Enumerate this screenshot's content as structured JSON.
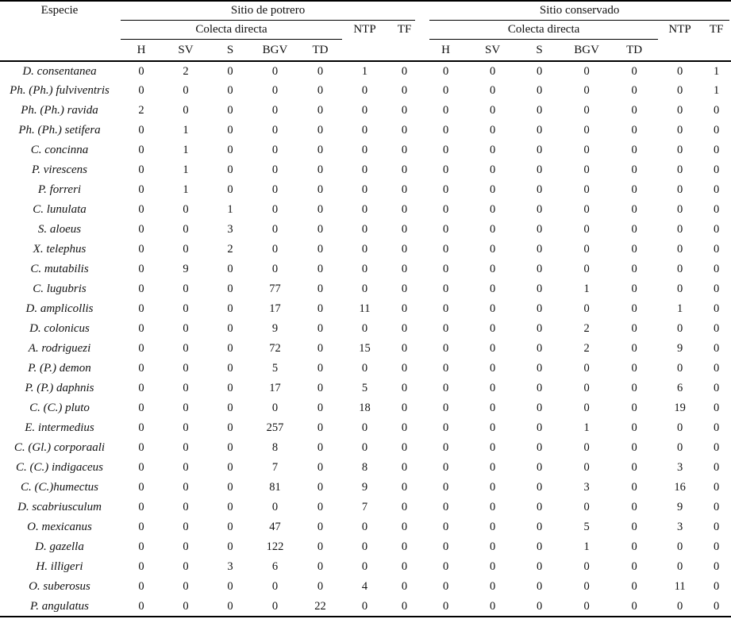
{
  "table": {
    "especie_header": "Especie",
    "groups": [
      {
        "label": "Sitio de potrero"
      },
      {
        "label": "Sitio conservado"
      }
    ],
    "subgroup_label": "Colecta directa",
    "method_columns": [
      "H",
      "SV",
      "S",
      "BGV",
      "TD"
    ],
    "extra_columns": [
      "NTP",
      "TF"
    ],
    "rows": [
      {
        "species": "D. consentanea",
        "values": [
          0,
          2,
          0,
          0,
          0,
          1,
          0,
          0,
          0,
          0,
          0,
          0,
          0,
          1
        ]
      },
      {
        "species": "Ph. (Ph.) fulviventris",
        "values": [
          0,
          0,
          0,
          0,
          0,
          0,
          0,
          0,
          0,
          0,
          0,
          0,
          0,
          1
        ]
      },
      {
        "species": "Ph. (Ph.) ravida",
        "values": [
          2,
          0,
          0,
          0,
          0,
          0,
          0,
          0,
          0,
          0,
          0,
          0,
          0,
          0
        ]
      },
      {
        "species": "Ph. (Ph.) setifera",
        "values": [
          0,
          1,
          0,
          0,
          0,
          0,
          0,
          0,
          0,
          0,
          0,
          0,
          0,
          0
        ]
      },
      {
        "species": "C. concinna",
        "values": [
          0,
          1,
          0,
          0,
          0,
          0,
          0,
          0,
          0,
          0,
          0,
          0,
          0,
          0
        ]
      },
      {
        "species": "P. virescens",
        "values": [
          0,
          1,
          0,
          0,
          0,
          0,
          0,
          0,
          0,
          0,
          0,
          0,
          0,
          0
        ]
      },
      {
        "species": "P. forreri",
        "values": [
          0,
          1,
          0,
          0,
          0,
          0,
          0,
          0,
          0,
          0,
          0,
          0,
          0,
          0
        ]
      },
      {
        "species": "C. lunulata",
        "values": [
          0,
          0,
          1,
          0,
          0,
          0,
          0,
          0,
          0,
          0,
          0,
          0,
          0,
          0
        ]
      },
      {
        "species": "S. aloeus",
        "values": [
          0,
          0,
          3,
          0,
          0,
          0,
          0,
          0,
          0,
          0,
          0,
          0,
          0,
          0
        ]
      },
      {
        "species": "X. telephus",
        "values": [
          0,
          0,
          2,
          0,
          0,
          0,
          0,
          0,
          0,
          0,
          0,
          0,
          0,
          0
        ]
      },
      {
        "species": "C. mutabilis",
        "values": [
          0,
          9,
          0,
          0,
          0,
          0,
          0,
          0,
          0,
          0,
          0,
          0,
          0,
          0
        ]
      },
      {
        "species": "C. lugubris",
        "values": [
          0,
          0,
          0,
          77,
          0,
          0,
          0,
          0,
          0,
          0,
          1,
          0,
          0,
          0
        ]
      },
      {
        "species": "D. amplicollis",
        "values": [
          0,
          0,
          0,
          17,
          0,
          11,
          0,
          0,
          0,
          0,
          0,
          0,
          1,
          0
        ]
      },
      {
        "species": "D. colonicus",
        "values": [
          0,
          0,
          0,
          9,
          0,
          0,
          0,
          0,
          0,
          0,
          2,
          0,
          0,
          0
        ]
      },
      {
        "species": "A. rodriguezi",
        "values": [
          0,
          0,
          0,
          72,
          0,
          15,
          0,
          0,
          0,
          0,
          2,
          0,
          9,
          0
        ]
      },
      {
        "species": "P. (P.) demon",
        "values": [
          0,
          0,
          0,
          5,
          0,
          0,
          0,
          0,
          0,
          0,
          0,
          0,
          0,
          0
        ]
      },
      {
        "species": "P. (P.) daphnis",
        "values": [
          0,
          0,
          0,
          17,
          0,
          5,
          0,
          0,
          0,
          0,
          0,
          0,
          6,
          0
        ]
      },
      {
        "species": "C. (C.) pluto",
        "values": [
          0,
          0,
          0,
          0,
          0,
          18,
          0,
          0,
          0,
          0,
          0,
          0,
          19,
          0
        ]
      },
      {
        "species": "E. intermedius",
        "values": [
          0,
          0,
          0,
          257,
          0,
          0,
          0,
          0,
          0,
          0,
          1,
          0,
          0,
          0
        ]
      },
      {
        "species": "C. (Gl.) corporaali",
        "values": [
          0,
          0,
          0,
          8,
          0,
          0,
          0,
          0,
          0,
          0,
          0,
          0,
          0,
          0
        ]
      },
      {
        "species": "C. (C.) indigaceus",
        "values": [
          0,
          0,
          0,
          7,
          0,
          8,
          0,
          0,
          0,
          0,
          0,
          0,
          3,
          0
        ]
      },
      {
        "species": "C. (C.)humectus",
        "values": [
          0,
          0,
          0,
          81,
          0,
          9,
          0,
          0,
          0,
          0,
          3,
          0,
          16,
          0
        ]
      },
      {
        "species": "D. scabriusculum",
        "values": [
          0,
          0,
          0,
          0,
          0,
          7,
          0,
          0,
          0,
          0,
          0,
          0,
          9,
          0
        ]
      },
      {
        "species": "O. mexicanus",
        "values": [
          0,
          0,
          0,
          47,
          0,
          0,
          0,
          0,
          0,
          0,
          5,
          0,
          3,
          0
        ]
      },
      {
        "species": "D. gazella",
        "values": [
          0,
          0,
          0,
          122,
          0,
          0,
          0,
          0,
          0,
          0,
          1,
          0,
          0,
          0
        ]
      },
      {
        "species": "H. illigeri",
        "values": [
          0,
          0,
          3,
          6,
          0,
          0,
          0,
          0,
          0,
          0,
          0,
          0,
          0,
          0
        ]
      },
      {
        "species": "O. suberosus",
        "values": [
          0,
          0,
          0,
          0,
          0,
          4,
          0,
          0,
          0,
          0,
          0,
          0,
          11,
          0
        ]
      },
      {
        "species": "P. angulatus",
        "values": [
          0,
          0,
          0,
          0,
          22,
          0,
          0,
          0,
          0,
          0,
          0,
          0,
          0,
          0
        ]
      }
    ]
  }
}
